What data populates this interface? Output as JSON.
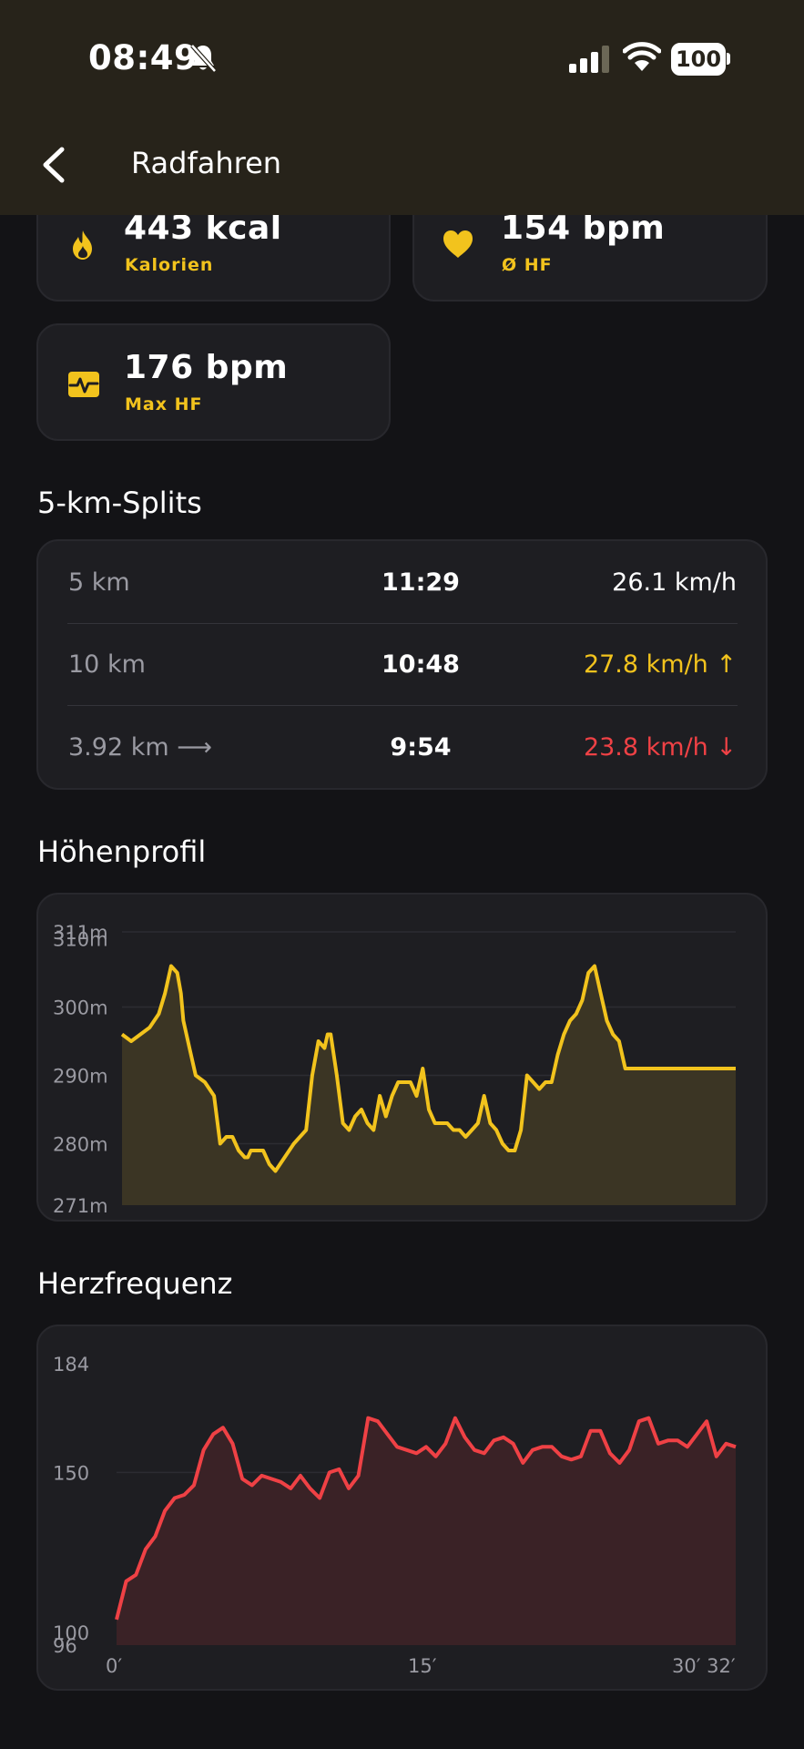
{
  "status_bar": {
    "time": "08:49",
    "battery": "100",
    "icons": [
      "bell-slash-icon",
      "cellular-signal-icon",
      "wifi-icon",
      "battery-icon"
    ]
  },
  "header": {
    "title": "Radfahren",
    "back_icon": "chevron-left-icon"
  },
  "stats": [
    {
      "value": "443 kcal",
      "label": "Kalorien",
      "icon": "flame-icon"
    },
    {
      "value": "154 bpm",
      "label": "Ø HF",
      "icon": "heart-icon"
    },
    {
      "value": "176 bpm",
      "label": "Max HF",
      "icon": "heart-rate-icon"
    }
  ],
  "splits": {
    "title": "5-km-Splits",
    "rows": [
      {
        "distance": "5 km",
        "time": "11:29",
        "speed": "26.1 km/h",
        "trend": "neutral"
      },
      {
        "distance": "10 km",
        "time": "10:48",
        "speed": "27.8 km/h ↑",
        "trend": "up"
      },
      {
        "distance": "3.92 km ⟶",
        "time": "9:54",
        "speed": "23.8 km/h ↓",
        "trend": "down"
      }
    ]
  },
  "colors": {
    "accent": "#f2c31d",
    "heart": "#ef4145",
    "card": "#1e1e22",
    "background": "#131316",
    "header": "#27231a"
  },
  "chart_data": [
    {
      "type": "area",
      "title": "Höhenprofil",
      "y_ticks": [
        "311m",
        "310m",
        "300m",
        "290m",
        "280m",
        "271m"
      ],
      "ylim": [
        271,
        311
      ],
      "x": [
        0,
        1.5,
        3,
        4.5,
        6,
        7,
        8,
        9,
        9.6,
        10,
        11,
        12,
        13.5,
        15,
        16,
        17,
        18,
        18.5,
        19,
        20,
        20.5,
        21,
        22,
        23,
        24,
        25,
        26.5,
        28,
        30,
        31,
        32,
        33,
        33.5,
        34,
        35,
        36,
        37,
        38,
        39,
        40,
        41,
        42,
        43,
        44,
        45,
        46,
        47,
        48,
        49,
        50,
        51,
        52,
        53,
        54,
        55,
        56,
        57,
        58,
        59,
        60,
        61,
        62,
        63,
        64,
        65,
        66,
        67,
        68,
        69,
        70,
        71,
        72,
        73,
        74,
        75,
        76,
        77,
        78,
        79,
        80,
        81,
        82,
        83,
        84,
        85,
        86,
        87,
        88,
        89,
        90,
        91,
        92,
        93,
        94,
        95,
        96,
        97,
        98,
        99,
        100
      ],
      "values": [
        296,
        295,
        296,
        297,
        299,
        302,
        306,
        305,
        302,
        298,
        294,
        290,
        289,
        287,
        280,
        281,
        281,
        280,
        279,
        278,
        278,
        279,
        279,
        279,
        277,
        276,
        278,
        280,
        282,
        290,
        295,
        294,
        296,
        296,
        290,
        283,
        282,
        284,
        285,
        283,
        282,
        287,
        284,
        287,
        289,
        289,
        289,
        287,
        291,
        285,
        283,
        283,
        283,
        282,
        282,
        281,
        282,
        283,
        287,
        283,
        282,
        280,
        279,
        279,
        282,
        290,
        289,
        288,
        289,
        289,
        293,
        296,
        298,
        299,
        301,
        305,
        306,
        302,
        298,
        296,
        295,
        291,
        291,
        291,
        291,
        291,
        291,
        291,
        291,
        291,
        291,
        291,
        291,
        291,
        291,
        291,
        291,
        291,
        291,
        291
      ],
      "x_extent_note": "",
      "series_color": "#f2c31d"
    },
    {
      "type": "area",
      "title": "Herzfrequenz",
      "y_ticks": [
        "184",
        "150",
        "100",
        "96"
      ],
      "ylim": [
        96,
        184
      ],
      "x_ticks": [
        "0′",
        "15′",
        "30′ 32′"
      ],
      "x": [
        0,
        0.5,
        1,
        1.5,
        2,
        2.5,
        3,
        3.5,
        4,
        4.5,
        5,
        5.5,
        6,
        6.5,
        7,
        7.5,
        8,
        8.5,
        9,
        9.5,
        10,
        10.5,
        11,
        11.5,
        12,
        12.5,
        13,
        13.5,
        14,
        14.5,
        15,
        15.5,
        16,
        16.5,
        17,
        17.5,
        18,
        18.5,
        19,
        19.5,
        20,
        20.5,
        21,
        21.5,
        22,
        22.5,
        23,
        23.5,
        24,
        24.5,
        25,
        25.5,
        26,
        26.5,
        27,
        27.5,
        28,
        28.5,
        29,
        29.5,
        30,
        30.5,
        31,
        31.5,
        32
      ],
      "values": [
        104,
        116,
        118,
        126,
        130,
        138,
        142,
        143,
        146,
        157,
        162,
        164,
        159,
        148,
        146,
        149,
        148,
        147,
        145,
        149,
        145,
        142,
        150,
        151,
        145,
        149,
        167,
        166,
        162,
        158,
        157,
        156,
        158,
        155,
        159,
        167,
        161,
        157,
        156,
        160,
        161,
        159,
        153,
        157,
        158,
        158,
        155,
        154,
        155,
        163,
        163,
        156,
        153,
        157,
        166,
        167,
        159,
        160,
        160,
        158,
        162,
        166,
        155,
        159,
        158
      ],
      "series_color": "#ef4145"
    }
  ],
  "heart_section": {
    "title": "Herzfrequenz"
  },
  "elevation_section": {
    "title": "Höhenprofil"
  }
}
